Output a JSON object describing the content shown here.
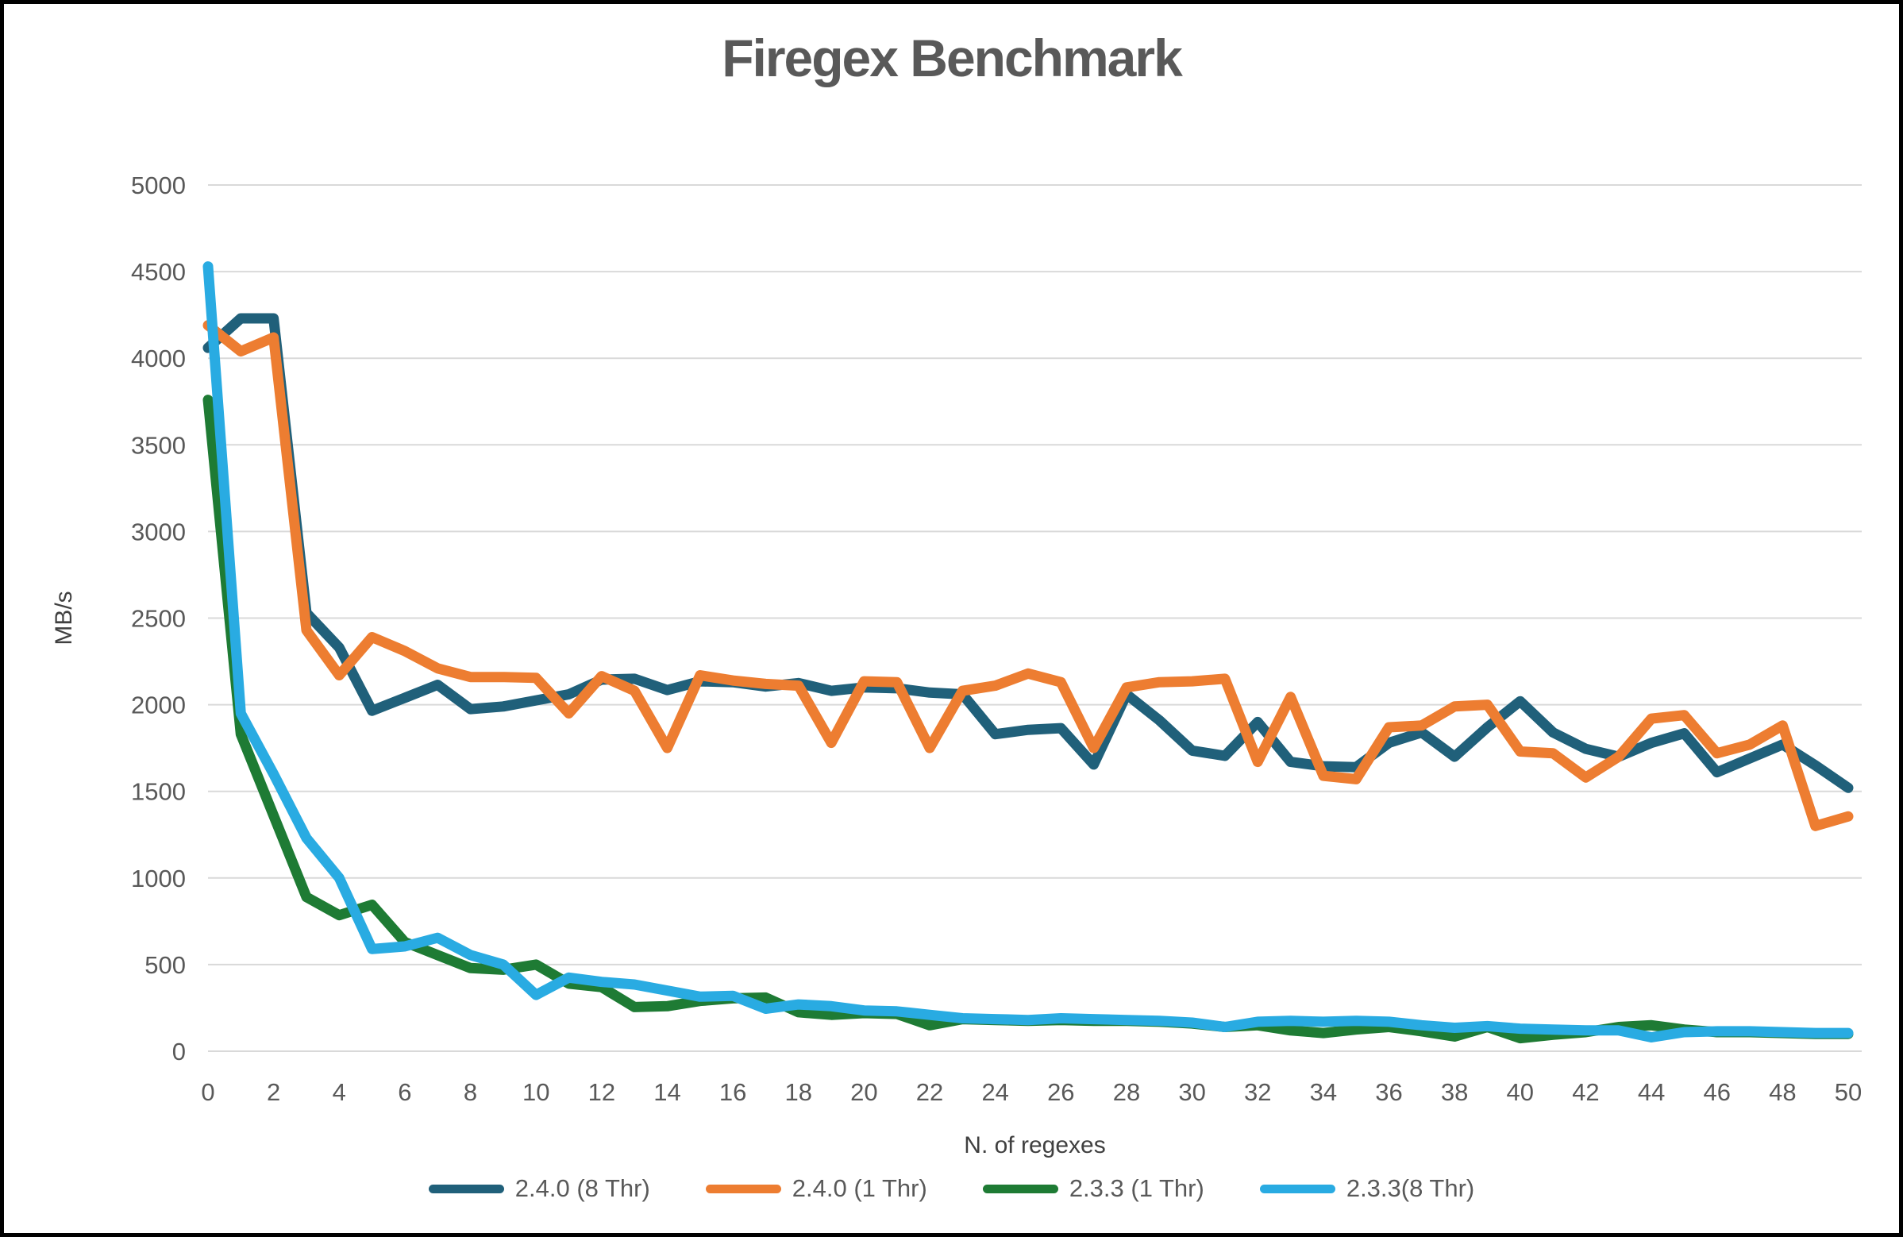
{
  "window": {
    "title": "Firegex Benchmark"
  },
  "chart_data": {
    "type": "line",
    "title": "Firegex Benchmark",
    "xlabel": "N. of regexes",
    "ylabel": "MB/s",
    "xlim": [
      0,
      50
    ],
    "ylim": [
      0,
      5000
    ],
    "ytick_step": 500,
    "xtick_step": 2,
    "grid": "horizontal",
    "legend_position": "bottom",
    "x": [
      0,
      1,
      2,
      3,
      4,
      5,
      6,
      7,
      8,
      9,
      10,
      11,
      12,
      13,
      14,
      15,
      16,
      17,
      18,
      19,
      20,
      21,
      22,
      23,
      24,
      25,
      26,
      27,
      28,
      29,
      30,
      31,
      32,
      33,
      34,
      35,
      36,
      37,
      38,
      39,
      40,
      41,
      42,
      43,
      44,
      45,
      46,
      47,
      48,
      49,
      50
    ],
    "series": [
      {
        "name": "2.4.0 (8 Thr)",
        "color": "#20607A",
        "values": [
          4060,
          4230,
          4230,
          2530,
          2330,
          1965,
          2040,
          2115,
          1975,
          1990,
          2025,
          2060,
          2145,
          2150,
          2085,
          2135,
          2130,
          2105,
          2125,
          2080,
          2100,
          2095,
          2070,
          2060,
          1830,
          1855,
          1865,
          1655,
          2060,
          1910,
          1735,
          1705,
          1900,
          1670,
          1645,
          1640,
          1780,
          1840,
          1700,
          1870,
          2020,
          1840,
          1745,
          1700,
          1780,
          1835,
          1610,
          1690,
          1770,
          1650,
          1520
        ]
      },
      {
        "name": "2.4.0 (1 Thr)",
        "color": "#ED7D31",
        "values": [
          4190,
          4040,
          4120,
          2430,
          2170,
          2390,
          2310,
          2210,
          2160,
          2160,
          2155,
          1950,
          2165,
          2080,
          1750,
          2170,
          2140,
          2120,
          2110,
          1780,
          2135,
          2130,
          1750,
          2080,
          2110,
          2180,
          2130,
          1750,
          2100,
          2130,
          2135,
          2150,
          1670,
          2045,
          1590,
          1570,
          1870,
          1880,
          1990,
          2000,
          1730,
          1720,
          1580,
          1700,
          1920,
          1940,
          1720,
          1770,
          1880,
          1300,
          1355
        ]
      },
      {
        "name": "2.3.3 (1 Thr)",
        "color": "#1E7B34",
        "values": [
          3760,
          1830,
          1360,
          890,
          785,
          845,
          630,
          555,
          480,
          470,
          500,
          390,
          370,
          255,
          260,
          290,
          305,
          310,
          225,
          210,
          220,
          215,
          150,
          185,
          180,
          175,
          180,
          175,
          175,
          170,
          160,
          140,
          150,
          120,
          105,
          125,
          140,
          115,
          85,
          140,
          75,
          95,
          110,
          140,
          150,
          125,
          110,
          110,
          105,
          100,
          100
        ]
      },
      {
        "name": "2.3.3(8 Thr)",
        "color": "#29ABE2",
        "values": [
          4530,
          1950,
          1600,
          1230,
          1000,
          590,
          605,
          655,
          555,
          500,
          325,
          425,
          400,
          385,
          350,
          315,
          320,
          245,
          270,
          260,
          235,
          230,
          210,
          190,
          185,
          180,
          190,
          185,
          180,
          175,
          165,
          140,
          170,
          175,
          170,
          175,
          170,
          150,
          135,
          145,
          130,
          125,
          120,
          120,
          80,
          110,
          115,
          115,
          110,
          105,
          105
        ]
      }
    ]
  }
}
